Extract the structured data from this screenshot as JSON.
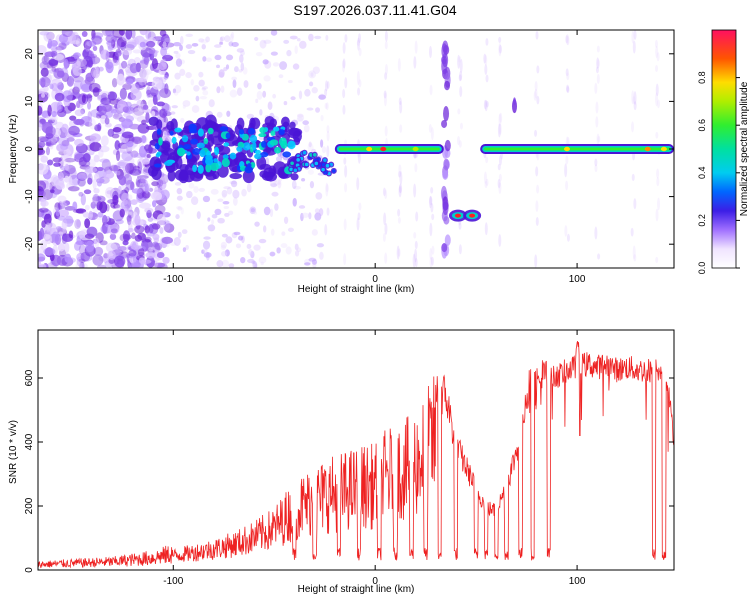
{
  "title": "S197.2026.037.11.41.G04",
  "chart_data": [
    {
      "type": "heatmap",
      "title": "S197.2026.037.11.41.G04",
      "xlabel": "Height of straight line (km)",
      "ylabel": "Frequency (Hz)",
      "xlim": [
        -167,
        148
      ],
      "ylim": [
        -25,
        25
      ],
      "x_ticks": [
        -100,
        0,
        100
      ],
      "y_ticks": [
        -20,
        -10,
        0,
        10,
        20
      ],
      "colorbar": {
        "label": "Normalized spectral amplitude",
        "range": [
          0.0,
          1.0
        ],
        "ticks": [
          0.0,
          0.2,
          0.4,
          0.6,
          0.8
        ]
      },
      "features": [
        {
          "name": "main_line",
          "x_range": [
            -110,
            148
          ],
          "frequency_hz": 0
        },
        {
          "name": "dip",
          "x_range": [
            -45,
            -20
          ],
          "frequency_hz": -4
        },
        {
          "name": "side_band",
          "x_range": [
            38,
            52
          ],
          "frequency_hz": -14
        },
        {
          "name": "vertical_streak",
          "x_range": [
            33,
            37
          ],
          "frequency_hz": [
            -20,
            24
          ]
        }
      ]
    },
    {
      "type": "line",
      "xlabel": "Height of straight line (km)",
      "ylabel": "SNR (10 * v/v)",
      "xlim": [
        -167,
        148
      ],
      "ylim": [
        0,
        750
      ],
      "x_ticks": [
        -100,
        0,
        100
      ],
      "y_ticks": [
        0,
        200,
        400,
        600
      ],
      "series": [
        {
          "name": "SNR",
          "color": "#ee2222",
          "x": [
            -167,
            -150,
            -130,
            -110,
            -100,
            -90,
            -80,
            -70,
            -60,
            -50,
            -45,
            -40,
            -35,
            -30,
            -25,
            -20,
            -15,
            -10,
            -5,
            0,
            5,
            10,
            15,
            20,
            25,
            30,
            35,
            40,
            45,
            50,
            55,
            60,
            65,
            70,
            75,
            80,
            85,
            90,
            95,
            100,
            105,
            110,
            115,
            120,
            125,
            130,
            135,
            140,
            145,
            148
          ],
          "y": [
            20,
            25,
            30,
            45,
            60,
            75,
            90,
            110,
            140,
            180,
            220,
            260,
            280,
            300,
            320,
            330,
            340,
            350,
            360,
            360,
            400,
            420,
            430,
            460,
            510,
            570,
            560,
            400,
            330,
            260,
            200,
            190,
            270,
            380,
            570,
            590,
            620,
            630,
            650,
            660,
            670,
            660,
            670,
            650,
            660,
            650,
            650,
            650,
            600,
            420
          ]
        }
      ],
      "dropouts_x": [
        -40,
        -30,
        -18,
        -8,
        2,
        10,
        18,
        25,
        32,
        40,
        50,
        55,
        60,
        65,
        72,
        78,
        86,
        138,
        143
      ]
    }
  ]
}
